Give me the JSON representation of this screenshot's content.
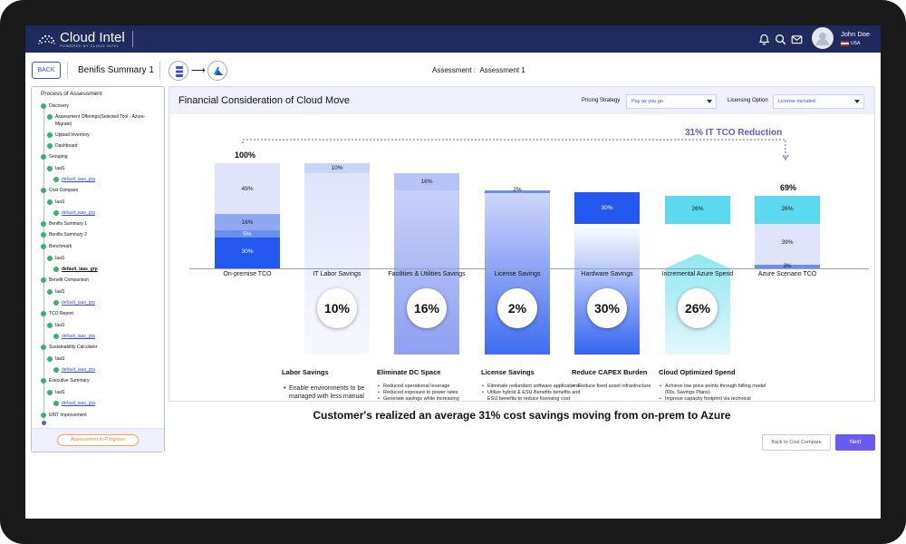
{
  "app": {
    "name": "Cloud Intel",
    "tagline": "POWERED BY CLOUD INTEL"
  },
  "user": {
    "name": "John Doe",
    "country": "USA"
  },
  "topbar": {
    "back_label": "BACK",
    "page_title": "Benifis Summary 1",
    "assessment_label": "Assessment :",
    "assessment_value": "Assessment 1",
    "flow_target": "Azure"
  },
  "sidebar": {
    "title": "Process of Assessment",
    "status_label": "Assessment In-Progress",
    "items": [
      {
        "label": "Discovery"
      },
      {
        "label": "Assessment Offerings(Selected Tool - Azure-"
      },
      {
        "label": "Migrate)"
      },
      {
        "label": "Upload Inventory"
      },
      {
        "label": "Dashboard"
      },
      {
        "label": "Grouping"
      },
      {
        "label": "IaaS"
      },
      {
        "label": "default_iaas_grp"
      },
      {
        "label": "Cost Compare"
      },
      {
        "label": "IaaS"
      },
      {
        "label": "default_iaas_grp"
      },
      {
        "label": "Benifis Summary 1"
      },
      {
        "label": "Benifis Summary 2"
      },
      {
        "label": "Benchmark"
      },
      {
        "label": "IaaS"
      },
      {
        "label": "default_iaas_grp"
      },
      {
        "label": "Benefit Comparison"
      },
      {
        "label": "IaaS"
      },
      {
        "label": "default_iaas_grp"
      },
      {
        "label": "TCO Report"
      },
      {
        "label": "IaaS"
      },
      {
        "label": "default_iaas_grp"
      },
      {
        "label": "Sustainability Calculator"
      },
      {
        "label": "IaaS"
      },
      {
        "label": "default_iaas_grp"
      },
      {
        "label": "Executive Summary"
      },
      {
        "label": "IaaS"
      },
      {
        "label": "default_iaas_grp"
      },
      {
        "label": "EBIT Improvement"
      }
    ]
  },
  "main": {
    "title": "Financial Consideration of Cloud Move",
    "pricing_label": "Pricing Strategy",
    "pricing_value": "Pay as you go",
    "licensing_label": "Licensing Option",
    "licensing_value": "License included",
    "tco_reduction": "31% IT TCO Reduction",
    "footer": "Customer's realized an average 31% cost savings moving from on-prem to Azure"
  },
  "chart_data": {
    "type": "bar",
    "categories": [
      "On-premise TCO",
      "IT Labor Savings",
      "Facilities & Utilities Savings",
      "License Savings",
      "Hardware Savings",
      "Incremental Azure Spend",
      "Azure Scenario TCO"
    ],
    "start_total_label": "100%",
    "end_total_label": "69%",
    "onprem_segments": [
      "30%",
      "5%",
      "16%",
      "49%"
    ],
    "azure_segments": [
      "3%",
      "39%",
      "26%"
    ],
    "step_labels": [
      "10%",
      "16%",
      "2%",
      "30%",
      "26%"
    ],
    "circle_values": [
      "10%",
      "16%",
      "2%",
      "30%",
      "26%"
    ]
  },
  "benefits": [
    {
      "title": "Labor Savings",
      "points": [
        "Enable environments to be managed with less manual oversight"
      ]
    },
    {
      "title": "Eliminate DC Space",
      "points": [
        "Reduced operational leverage",
        "Reduced exposure to power rates",
        "Generate savings while increasing flexibility"
      ]
    },
    {
      "title": "License Savings",
      "points": [
        "Eliminate redundant software applications",
        "Utilize hybrid & ESU Benefits benefits and ESU benefits to reduce licensing cost"
      ]
    },
    {
      "title": "Reduce CAPEX Burden",
      "points": [
        "Reduce fixed asset infrastructure"
      ]
    },
    {
      "title": "Cloud Optimized Spend",
      "points": [
        "Achieve low price points through billing model (RIs, Savings Plans)",
        "Improve capacity footprint via technical optimization (rightsizing, autoscaling)"
      ]
    }
  ],
  "buttons": {
    "back_cost": "Back to Cost Compare",
    "next": "Next"
  },
  "colors": {
    "brand": "#1f2a5e",
    "accent": "#6a5bf0",
    "success": "#36b36a",
    "warning": "#ef8a33"
  }
}
